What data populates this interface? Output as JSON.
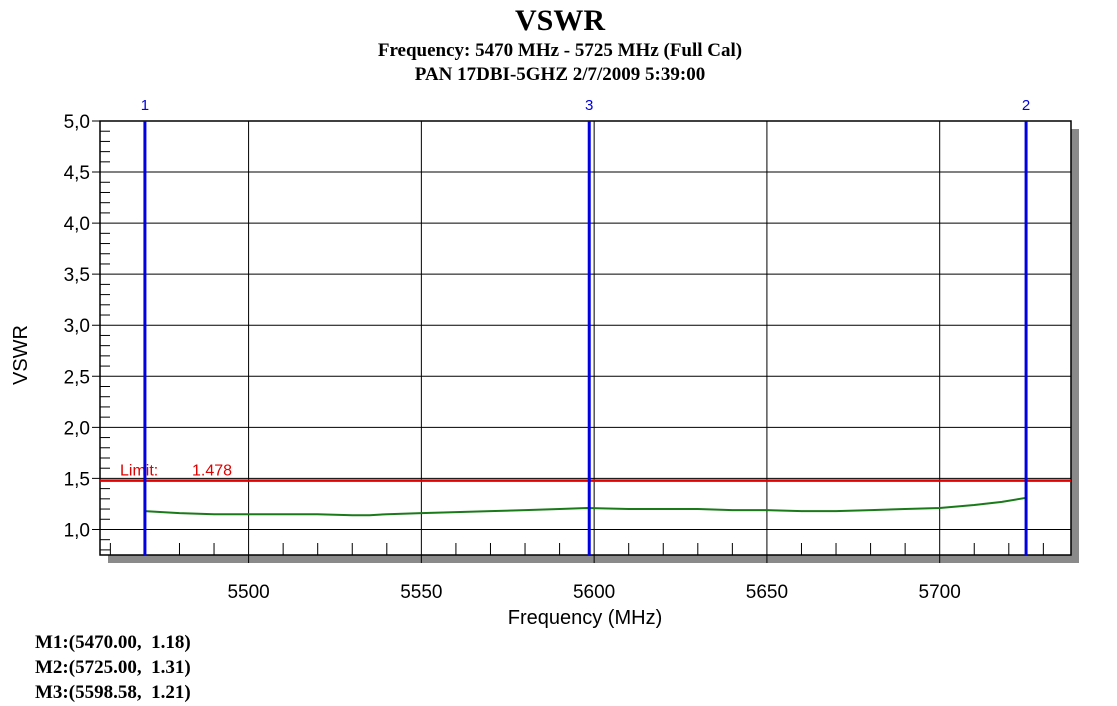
{
  "chart_data": {
    "type": "line",
    "title": "VSWR",
    "subtitle_lines": [
      "Frequency: 5470 MHz - 5725 MHz (Full Cal)",
      "PAN 17DBI-5GHZ 2/7/2009 5:39:00"
    ],
    "xlabel": "Frequency (MHz)",
    "ylabel": "VSWR",
    "xlim": [
      5457,
      5738
    ],
    "ylim": [
      0.75,
      5.0
    ],
    "x_ticks": [
      5500,
      5550,
      5600,
      5650,
      5700
    ],
    "x_tick_labels": [
      "5500",
      "5550",
      "5600",
      "5650",
      "5700"
    ],
    "y_ticks": [
      1.0,
      1.5,
      2.0,
      2.5,
      3.0,
      3.5,
      4.0,
      4.5,
      5.0
    ],
    "y_tick_labels": [
      "1,0",
      "1,5",
      "2,0",
      "2,5",
      "3,0",
      "3,5",
      "4,0",
      "4,5",
      "5,0"
    ],
    "grid": true,
    "series": [
      {
        "color": "#1a7a1a",
        "x": [
          5470,
          5480,
          5490,
          5500,
          5510,
          5520,
          5530,
          5535,
          5540,
          5550,
          5560,
          5570,
          5580,
          5590,
          5598,
          5610,
          5620,
          5630,
          5640,
          5650,
          5660,
          5670,
          5680,
          5690,
          5700,
          5710,
          5718,
          5725
        ],
        "y": [
          1.18,
          1.16,
          1.15,
          1.15,
          1.15,
          1.15,
          1.14,
          1.14,
          1.15,
          1.16,
          1.17,
          1.18,
          1.19,
          1.2,
          1.21,
          1.2,
          1.2,
          1.2,
          1.19,
          1.19,
          1.18,
          1.18,
          1.19,
          1.2,
          1.21,
          1.24,
          1.27,
          1.31
        ]
      }
    ],
    "limit": {
      "label": "Limit:",
      "value": 1.478,
      "value_text": "1.478",
      "color": "#e00000"
    },
    "markers": [
      {
        "label": "1",
        "x": 5470,
        "color": "#0000e0"
      },
      {
        "label": "2",
        "x": 5725,
        "color": "#0000e0"
      },
      {
        "label": "3",
        "x": 5598.58,
        "color": "#0000e0"
      }
    ],
    "marker_readouts": [
      "M1:(5470.00,  1.18)",
      "M2:(5725.00,  1.31)",
      "M3:(5598.58,  1.21)"
    ]
  }
}
